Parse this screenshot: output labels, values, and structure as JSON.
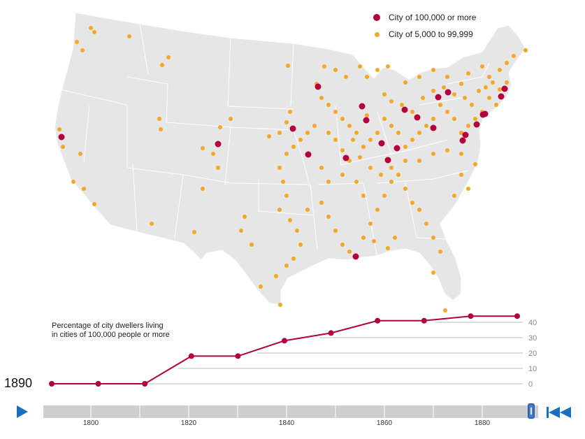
{
  "legend": {
    "large_label": "City of 100,000 or more",
    "small_label": "City of 5,000 to 99,999",
    "large_color": "#b5003e",
    "small_color": "#f5a623"
  },
  "current_year": "1890",
  "timeline": {
    "ticks": [
      "1800",
      "1820",
      "1840",
      "1860",
      "1880"
    ],
    "position": 1.0
  },
  "controls": {
    "play_icon": "play-icon",
    "rewind_icon": "rewind-to-start-icon"
  },
  "chart_data": {
    "type": "line",
    "title": "Percentage of city dwellers living in cities of 100,000 people or more",
    "xlabel": "",
    "ylabel": "",
    "x": [
      1790,
      1800,
      1810,
      1820,
      1830,
      1840,
      1850,
      1860,
      1870,
      1880,
      1890
    ],
    "series": [
      {
        "values": [
          0,
          0,
          0,
          18,
          18,
          28,
          33,
          41,
          41,
          44,
          44
        ]
      }
    ],
    "yticks": [
      "0",
      "10",
      "20",
      "30",
      "40"
    ],
    "ylim": [
      0,
      45
    ],
    "xlim": [
      1790,
      1890
    ],
    "grid": true
  }
}
